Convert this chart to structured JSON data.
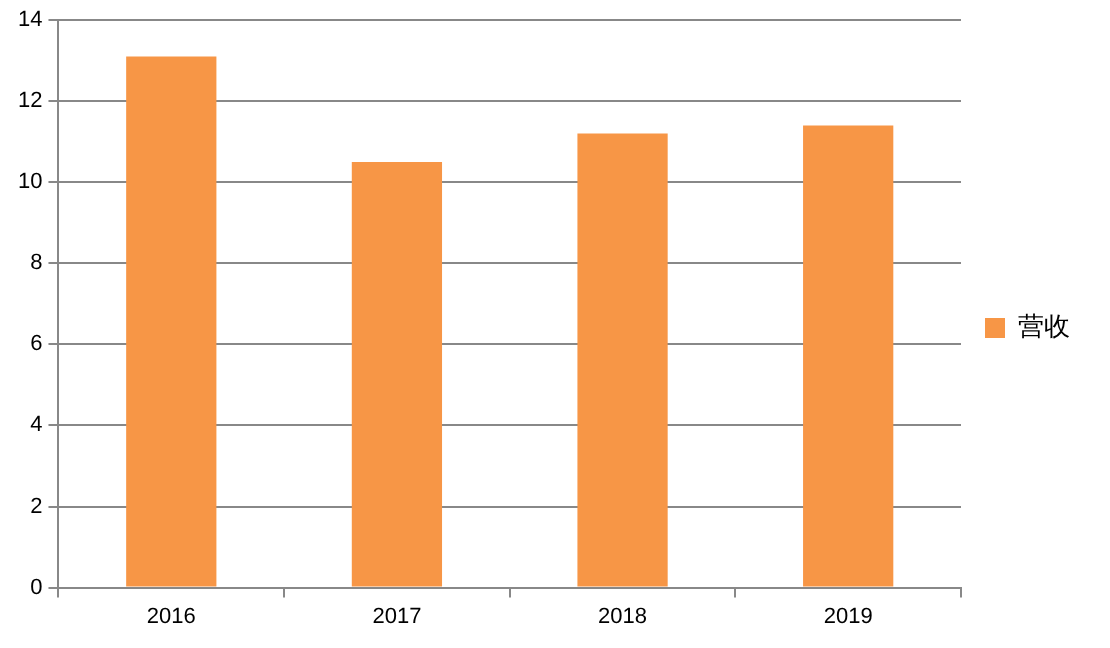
{
  "chart_data": {
    "type": "bar",
    "categories": [
      "2016",
      "2017",
      "2018",
      "2019"
    ],
    "series": [
      {
        "name": "营收",
        "color": "#f79646",
        "values": [
          13.1,
          10.5,
          11.2,
          11.4
        ]
      }
    ],
    "ylim": [
      0,
      14
    ],
    "yticks": [
      0,
      2,
      4,
      6,
      8,
      10,
      12,
      14
    ],
    "grid": "y",
    "legend": "right"
  }
}
